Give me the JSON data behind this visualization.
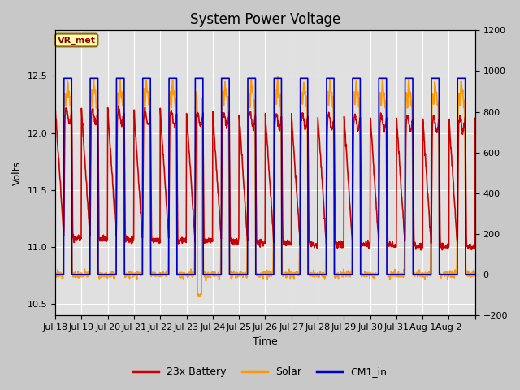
{
  "title": "System Power Voltage",
  "xlabel": "Time",
  "ylabel_left": "Volts",
  "ylim_left": [
    10.4,
    12.9
  ],
  "ylim_right": [
    -200,
    1200
  ],
  "legend_label": "VR_met",
  "series_labels": [
    "23x Battery",
    "Solar",
    "CM1_in"
  ],
  "series_colors": [
    "#cc0000",
    "#ff9900",
    "#0000cc"
  ],
  "bg_color": "#c8c8c8",
  "plot_bg_color": "#e0e0e0",
  "n_days": 16,
  "xtick_labels": [
    "Jul 18",
    "Jul 19",
    "Jul 20",
    "Jul 21",
    "Jul 22",
    "Jul 23",
    "Jul 24",
    "Jul 25",
    "Jul 26",
    "Jul 27",
    "Jul 28",
    "Jul 29",
    "Jul 30",
    "Jul 31",
    "Aug 1",
    "Aug 2"
  ],
  "grid_color": "#ffffff",
  "title_fontsize": 12,
  "axis_fontsize": 9,
  "tick_fontsize": 8,
  "legend_fontsize": 9,
  "line_width": 1.2
}
